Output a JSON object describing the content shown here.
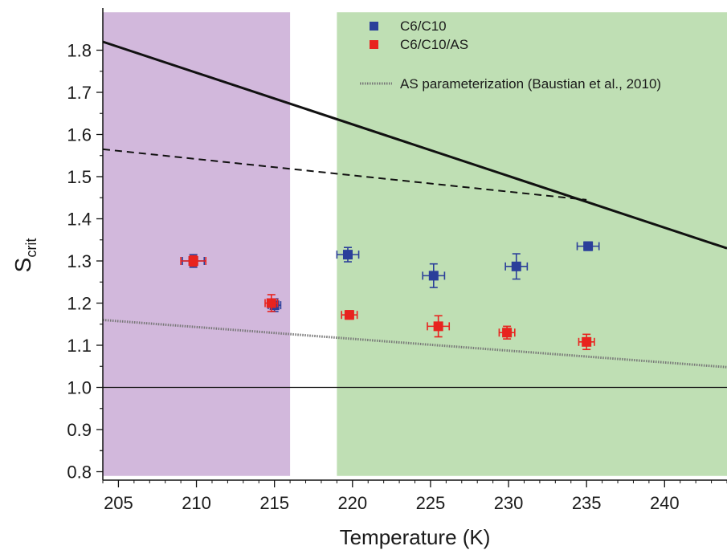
{
  "chart_data": {
    "type": "scatter",
    "xlabel": "Temperature (K)",
    "ylabel_main": "S",
    "ylabel_sub": "crit",
    "xlim": [
      204,
      244
    ],
    "ylim": [
      0.78,
      1.9
    ],
    "x_ticks": [
      205,
      210,
      215,
      220,
      225,
      230,
      235,
      240
    ],
    "y_ticks": [
      0.8,
      0.9,
      1.0,
      1.1,
      1.2,
      1.3,
      1.4,
      1.5,
      1.6,
      1.7,
      1.8
    ],
    "grid": false,
    "legend_position": "top-right",
    "colors": {
      "C6_C10": "#2b3f9a",
      "C6_C10_AS": "#e8231e",
      "purple_region": "#d2b8dc",
      "green_region": "#bfdfb4",
      "lines": "#111111",
      "dotted": "#777777"
    },
    "shaded_regions": [
      {
        "x": [
          204,
          216
        ],
        "y": [
          0.79,
          1.89
        ],
        "color": "#d2b8dc"
      },
      {
        "x": [
          219,
          244
        ],
        "y": [
          0.79,
          1.89
        ],
        "color": "#bfdfb4"
      }
    ],
    "series": [
      {
        "name": "C6/C10",
        "marker": "square",
        "color": "#2b3f9a",
        "points": [
          {
            "x": 209.8,
            "y": 1.3,
            "xerr": 0.7,
            "yerr": 0.015
          },
          {
            "x": 215.0,
            "y": 1.195,
            "xerr": 0.4,
            "yerr": 0.015
          },
          {
            "x": 219.7,
            "y": 1.315,
            "xerr": 0.7,
            "yerr": 0.017
          },
          {
            "x": 225.2,
            "y": 1.265,
            "xerr": 0.7,
            "yerr": 0.028
          },
          {
            "x": 230.5,
            "y": 1.287,
            "xerr": 0.7,
            "yerr": 0.03
          },
          {
            "x": 235.1,
            "y": 1.335,
            "xerr": 0.7,
            "yerr": 0.01
          }
        ]
      },
      {
        "name": "C6/C10/AS",
        "marker": "square",
        "color": "#e8231e",
        "points": [
          {
            "x": 209.8,
            "y": 1.3,
            "xerr": 0.8,
            "yerr": 0.012
          },
          {
            "x": 214.8,
            "y": 1.2,
            "xerr": 0.4,
            "yerr": 0.02
          },
          {
            "x": 219.8,
            "y": 1.172,
            "xerr": 0.5,
            "yerr": 0.01
          },
          {
            "x": 225.5,
            "y": 1.145,
            "xerr": 0.7,
            "yerr": 0.025
          },
          {
            "x": 229.9,
            "y": 1.13,
            "xerr": 0.5,
            "yerr": 0.015
          },
          {
            "x": 235.0,
            "y": 1.108,
            "xerr": 0.5,
            "yerr": 0.018
          }
        ]
      }
    ],
    "lines": [
      {
        "name": "",
        "style": "solid-thick",
        "x": [
          204,
          244
        ],
        "y": [
          1.82,
          1.33
        ]
      },
      {
        "name": "",
        "style": "dashed",
        "x": [
          204,
          235
        ],
        "y": [
          1.565,
          1.445
        ]
      },
      {
        "name": "AS parameterization (Baustian et al., 2010)",
        "style": "dotted",
        "x": [
          204,
          244
        ],
        "y": [
          1.16,
          1.048
        ]
      },
      {
        "name": "",
        "style": "solid-thin",
        "x": [
          204,
          244
        ],
        "y": [
          1.0,
          1.0
        ]
      }
    ]
  }
}
